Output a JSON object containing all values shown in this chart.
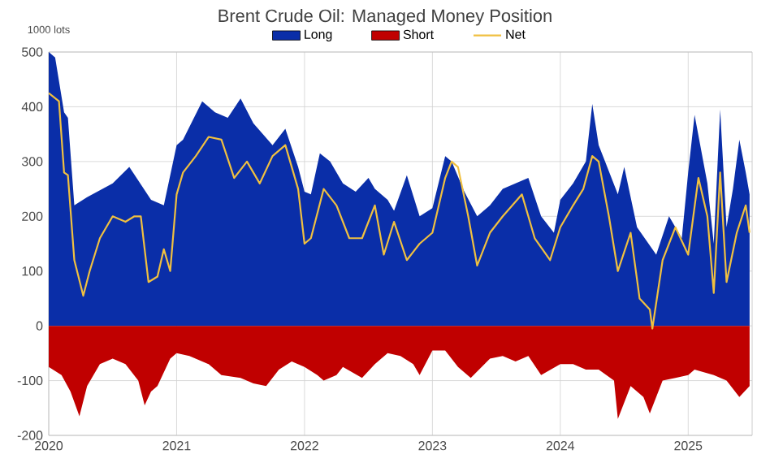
{
  "chart_data": {
    "type": "area",
    "title": "Brent Crude Oil: Managed Money Position",
    "ylabel": "1000 lots",
    "xlim": [
      2020,
      2025.5
    ],
    "ylim": [
      -200,
      500
    ],
    "xticks": [
      2020,
      2021,
      2022,
      2023,
      2024,
      2025
    ],
    "yticks": [
      -200,
      -100,
      0,
      100,
      200,
      300,
      400,
      500
    ],
    "grid": true,
    "legend": "top",
    "series": [
      {
        "name": "Long",
        "color": "#0a2ea8",
        "x": [
          2020.0,
          2020.05,
          2020.12,
          2020.15,
          2020.2,
          2020.3,
          2020.5,
          2020.63,
          2020.8,
          2020.9,
          2021.0,
          2021.05,
          2021.2,
          2021.3,
          2021.4,
          2021.5,
          2021.6,
          2021.75,
          2021.85,
          2021.95,
          2022.0,
          2022.05,
          2022.12,
          2022.2,
          2022.3,
          2022.4,
          2022.5,
          2022.55,
          2022.65,
          2022.7,
          2022.8,
          2022.9,
          2023.0,
          2023.1,
          2023.15,
          2023.25,
          2023.35,
          2023.45,
          2023.55,
          2023.65,
          2023.75,
          2023.85,
          2023.95,
          2024.0,
          2024.1,
          2024.2,
          2024.25,
          2024.3,
          2024.35,
          2024.45,
          2024.5,
          2024.6,
          2024.75,
          2024.85,
          2024.95,
          2025.0,
          2025.05,
          2025.15,
          2025.2,
          2025.25,
          2025.3,
          2025.35,
          2025.4,
          2025.45,
          2025.48
        ],
        "values": [
          500,
          490,
          390,
          380,
          220,
          235,
          260,
          290,
          230,
          220,
          330,
          340,
          410,
          390,
          380,
          415,
          370,
          330,
          360,
          290,
          245,
          240,
          315,
          300,
          260,
          245,
          270,
          250,
          230,
          210,
          275,
          200,
          215,
          310,
          300,
          245,
          200,
          220,
          250,
          260,
          270,
          200,
          170,
          230,
          260,
          300,
          405,
          330,
          300,
          240,
          290,
          180,
          130,
          200,
          160,
          280,
          385,
          260,
          150,
          395,
          180,
          250,
          340,
          280,
          240
        ]
      },
      {
        "name": "Short",
        "color": "#c00000",
        "x": [
          2020.0,
          2020.1,
          2020.17,
          2020.24,
          2020.3,
          2020.4,
          2020.5,
          2020.6,
          2020.7,
          2020.75,
          2020.8,
          2020.85,
          2020.95,
          2021.0,
          2021.1,
          2021.25,
          2021.35,
          2021.5,
          2021.6,
          2021.7,
          2021.8,
          2021.9,
          2022.0,
          2022.1,
          2022.15,
          2022.25,
          2022.3,
          2022.45,
          2022.55,
          2022.65,
          2022.75,
          2022.85,
          2022.9,
          2023.0,
          2023.1,
          2023.2,
          2023.3,
          2023.45,
          2023.55,
          2023.65,
          2023.75,
          2023.85,
          2024.0,
          2024.1,
          2024.2,
          2024.3,
          2024.42,
          2024.45,
          2024.55,
          2024.65,
          2024.7,
          2024.8,
          2024.9,
          2025.0,
          2025.05,
          2025.2,
          2025.3,
          2025.4,
          2025.48
        ],
        "values": [
          -75,
          -90,
          -120,
          -165,
          -110,
          -70,
          -60,
          -70,
          -100,
          -145,
          -120,
          -110,
          -60,
          -50,
          -55,
          -70,
          -90,
          -95,
          -105,
          -110,
          -80,
          -65,
          -75,
          -90,
          -100,
          -90,
          -75,
          -95,
          -70,
          -50,
          -55,
          -70,
          -90,
          -45,
          -45,
          -75,
          -95,
          -60,
          -55,
          -65,
          -55,
          -90,
          -70,
          -70,
          -80,
          -80,
          -100,
          -170,
          -110,
          -130,
          -160,
          -100,
          -95,
          -90,
          -80,
          -90,
          -100,
          -130,
          -110
        ]
      },
      {
        "name": "Net",
        "type": "line",
        "color": "#f0c040",
        "x": [
          2020.0,
          2020.08,
          2020.12,
          2020.15,
          2020.2,
          2020.27,
          2020.32,
          2020.4,
          2020.5,
          2020.6,
          2020.67,
          2020.72,
          2020.78,
          2020.85,
          2020.9,
          2020.95,
          2021.0,
          2021.05,
          2021.15,
          2021.25,
          2021.35,
          2021.45,
          2021.55,
          2021.65,
          2021.75,
          2021.85,
          2021.95,
          2022.0,
          2022.05,
          2022.15,
          2022.25,
          2022.35,
          2022.45,
          2022.55,
          2022.62,
          2022.7,
          2022.8,
          2022.9,
          2023.0,
          2023.1,
          2023.15,
          2023.2,
          2023.28,
          2023.35,
          2023.45,
          2023.55,
          2023.7,
          2023.8,
          2023.92,
          2024.0,
          2024.1,
          2024.18,
          2024.25,
          2024.3,
          2024.38,
          2024.45,
          2024.55,
          2024.62,
          2024.7,
          2024.72,
          2024.8,
          2024.9,
          2025.0,
          2025.08,
          2025.15,
          2025.2,
          2025.25,
          2025.3,
          2025.38,
          2025.45,
          2025.48
        ],
        "values": [
          425,
          410,
          280,
          275,
          120,
          55,
          100,
          160,
          200,
          190,
          200,
          200,
          80,
          90,
          140,
          100,
          240,
          280,
          310,
          345,
          340,
          270,
          300,
          260,
          310,
          330,
          250,
          150,
          160,
          250,
          220,
          160,
          160,
          220,
          130,
          190,
          120,
          150,
          170,
          270,
          300,
          290,
          200,
          110,
          170,
          200,
          240,
          160,
          120,
          180,
          220,
          250,
          310,
          300,
          200,
          100,
          170,
          50,
          30,
          -5,
          120,
          180,
          130,
          270,
          200,
          60,
          280,
          80,
          170,
          220,
          170
        ]
      }
    ]
  }
}
